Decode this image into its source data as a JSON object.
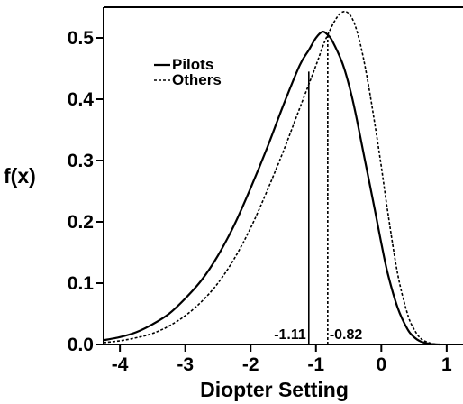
{
  "chart_data": {
    "type": "line",
    "title": "",
    "xlabel": "Diopter Setting",
    "ylabel": "f(x)",
    "xlim": [
      -4.25,
      1.25
    ],
    "ylim": [
      0,
      0.55
    ],
    "x_ticks": [
      {
        "value": -4,
        "label": "-4"
      },
      {
        "value": -3,
        "label": "-3"
      },
      {
        "value": -2,
        "label": "-2"
      },
      {
        "value": -1,
        "label": "-1"
      },
      {
        "value": 0,
        "label": "0"
      },
      {
        "value": 1,
        "label": "1"
      }
    ],
    "y_ticks": [
      {
        "value": 0.0,
        "label": "0.0"
      },
      {
        "value": 0.1,
        "label": "0.1"
      },
      {
        "value": 0.2,
        "label": "0.2"
      },
      {
        "value": 0.3,
        "label": "0.3"
      },
      {
        "value": 0.4,
        "label": "0.4"
      },
      {
        "value": 0.5,
        "label": "0.5"
      }
    ],
    "legend_position": "top-left",
    "grid": false,
    "series": [
      {
        "name": "Pilots",
        "style": "solid",
        "x": [
          -4.25,
          -4.0,
          -3.75,
          -3.5,
          -3.25,
          -3.0,
          -2.75,
          -2.5,
          -2.25,
          -2.0,
          -1.75,
          -1.5,
          -1.25,
          -1.11,
          -1.0,
          -0.9,
          -0.82,
          -0.75,
          -0.6,
          -0.5,
          -0.4,
          -0.25,
          -0.1,
          0.0,
          0.1,
          0.25,
          0.4,
          0.5,
          0.6,
          0.75,
          0.9
        ],
        "y": [
          0.007,
          0.012,
          0.02,
          0.033,
          0.05,
          0.075,
          0.105,
          0.145,
          0.195,
          0.255,
          0.32,
          0.39,
          0.455,
          0.48,
          0.5,
          0.51,
          0.505,
          0.495,
          0.46,
          0.425,
          0.38,
          0.3,
          0.22,
          0.165,
          0.115,
          0.06,
          0.025,
          0.012,
          0.005,
          0.001,
          0.0
        ]
      },
      {
        "name": "Others",
        "style": "dashed",
        "x": [
          -4.25,
          -4.0,
          -3.75,
          -3.5,
          -3.25,
          -3.0,
          -2.75,
          -2.5,
          -2.25,
          -2.0,
          -1.75,
          -1.5,
          -1.25,
          -1.0,
          -0.9,
          -0.82,
          -0.7,
          -0.6,
          -0.5,
          -0.4,
          -0.3,
          -0.2,
          -0.1,
          0.0,
          0.1,
          0.25,
          0.4,
          0.5,
          0.6,
          0.7,
          0.8,
          0.9,
          1.0
        ],
        "y": [
          0.003,
          0.006,
          0.011,
          0.018,
          0.03,
          0.047,
          0.07,
          0.1,
          0.14,
          0.19,
          0.25,
          0.315,
          0.385,
          0.455,
          0.485,
          0.505,
          0.53,
          0.542,
          0.54,
          0.52,
          0.48,
          0.425,
          0.36,
          0.29,
          0.215,
          0.115,
          0.05,
          0.025,
          0.01,
          0.004,
          0.001,
          0.0,
          0.0
        ]
      }
    ],
    "annotations": [
      {
        "x": -1.11,
        "label": "-1.11",
        "style": "solid"
      },
      {
        "x": -0.82,
        "label": "-0.82",
        "style": "dashed"
      }
    ]
  }
}
